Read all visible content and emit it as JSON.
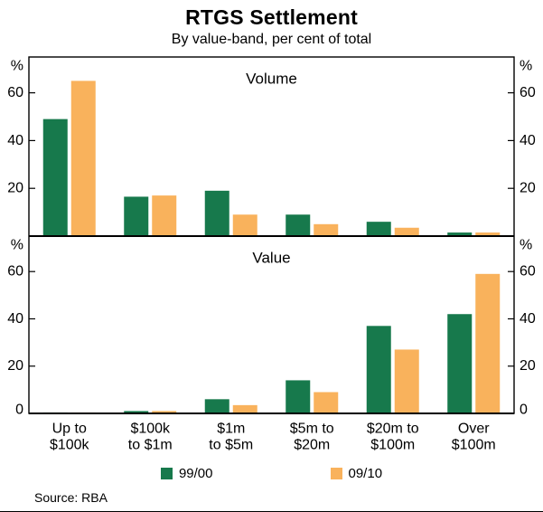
{
  "header": {
    "title": "RTGS Settlement",
    "subtitle": "By value-band, per cent of total"
  },
  "source": "Source: RBA",
  "chart_data": [
    {
      "type": "bar",
      "panel_title": "Volume",
      "categories": [
        "Up to\n$100k",
        "$100k\nto $1m",
        "$1m\nto $5m",
        "$5m to\n$20m",
        "$20m to\n$100m",
        "Over\n$100m"
      ],
      "series": [
        {
          "name": "99/00",
          "color": "#17794c",
          "values": [
            49,
            16.5,
            19,
            9,
            6,
            1.5
          ]
        },
        {
          "name": "09/10",
          "color": "#f9b25c",
          "values": [
            65,
            17,
            9,
            5,
            3.5,
            1.5
          ]
        }
      ],
      "ylim": [
        0,
        75
      ],
      "yticks": [
        0,
        20,
        40,
        60
      ],
      "ylabel": "%",
      "grid": false,
      "legend_position": "bottom"
    },
    {
      "type": "bar",
      "panel_title": "Value",
      "categories": [
        "Up to\n$100k",
        "$100k\nto $1m",
        "$1m\nto $5m",
        "$5m to\n$20m",
        "$20m to\n$100m",
        "Over\n$100m"
      ],
      "series": [
        {
          "name": "99/00",
          "color": "#17794c",
          "values": [
            0.4,
            1,
            6,
            14,
            37,
            42
          ]
        },
        {
          "name": "09/10",
          "color": "#f9b25c",
          "values": [
            0.4,
            1,
            3.5,
            9,
            27,
            59
          ]
        }
      ],
      "ylim": [
        0,
        75
      ],
      "yticks": [
        0,
        20,
        40,
        60
      ],
      "ylabel": "%",
      "grid": false,
      "legend_position": "bottom"
    }
  ]
}
